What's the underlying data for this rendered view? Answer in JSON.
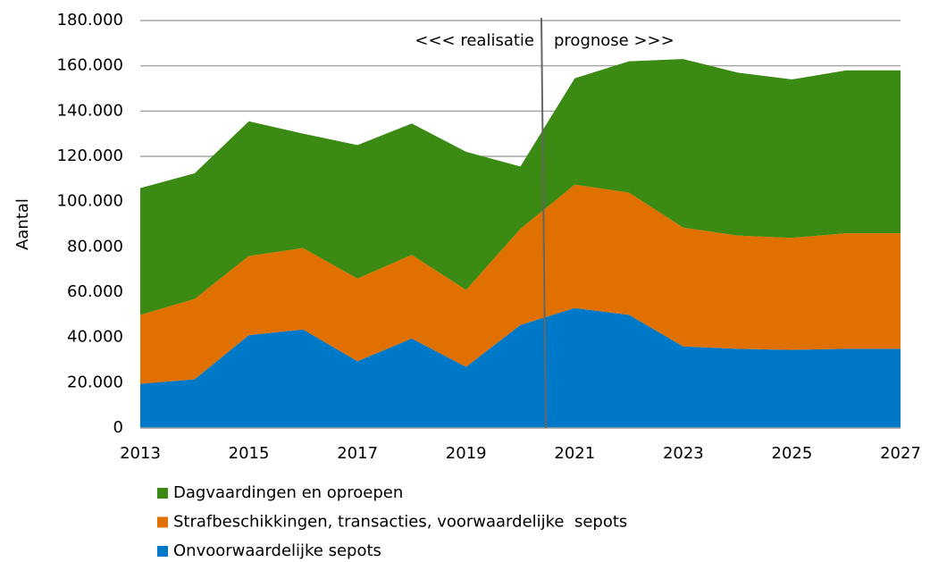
{
  "chart_data": {
    "type": "stacked_area",
    "y_label": "Aantal",
    "annotations": [
      "<<< realisatie",
      "prognose >>>"
    ],
    "x": [
      2013,
      2014,
      2015,
      2016,
      2017,
      2018,
      2019,
      2020,
      2021,
      2022,
      2023,
      2024,
      2025,
      2026,
      2027
    ],
    "xlim": [
      2013,
      2027
    ],
    "xticks": [
      2013,
      2015,
      2017,
      2019,
      2021,
      2023,
      2025,
      2027
    ],
    "ylim": [
      0,
      180000
    ],
    "yticks": [
      0,
      {
        "value": 20000,
        "label": "20.000"
      },
      {
        "value": 40000,
        "label": "40.000"
      },
      {
        "value": 60000,
        "label": "60.000"
      },
      {
        "value": 80000,
        "label": "80.000"
      },
      {
        "value": 100000,
        "label": "100.000"
      },
      {
        "value": 120000,
        "label": "120.000"
      },
      {
        "value": 140000,
        "label": "140.000"
      },
      {
        "value": 160000,
        "label": "160.000"
      },
      {
        "value": 180000,
        "label": "180.000"
      }
    ],
    "grid": true,
    "series": [
      {
        "name": "Onvoorwaardelijke sepots",
        "color": "#0078c8",
        "values": [
          19500,
          21500,
          41000,
          43500,
          29500,
          39500,
          27000,
          45500,
          53000,
          50000,
          36000,
          35000,
          34500,
          35000,
          35000
        ]
      },
      {
        "name": "Strafbeschikkingen, transacties, voorwaardelijke  sepots",
        "color": "#e07000",
        "values": [
          30500,
          35500,
          35000,
          36000,
          36500,
          37000,
          34000,
          42500,
          54500,
          54000,
          52500,
          50000,
          49500,
          51000,
          51000
        ]
      },
      {
        "name": "Dagvaardingen en oproepen",
        "color": "#3a8a13",
        "values": [
          56000,
          55500,
          59500,
          50500,
          59000,
          58000,
          61000,
          27500,
          47000,
          58000,
          74500,
          72000,
          70000,
          72000,
          72000
        ]
      }
    ]
  }
}
